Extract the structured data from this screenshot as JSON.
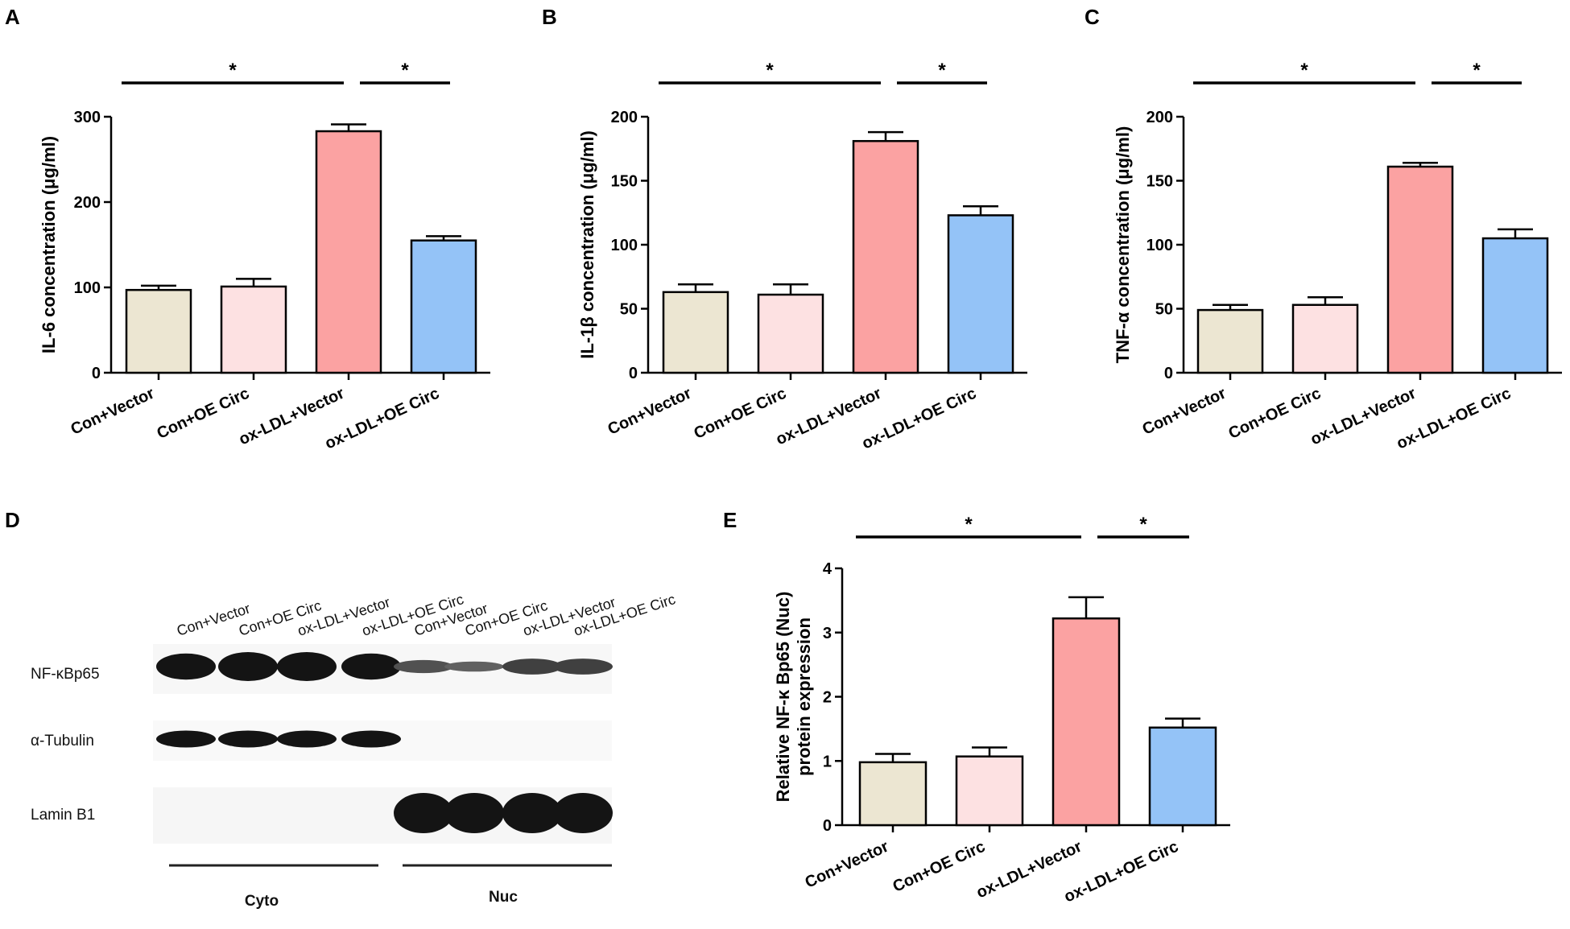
{
  "colors": {
    "bar_fills": [
      "#ece6d2",
      "#fde1e2",
      "#fba2a2",
      "#94c3f7"
    ],
    "axis": "#000000",
    "band": "#1a1a1a"
  },
  "chart_data": [
    {
      "panel": "A",
      "type": "bar",
      "title": "",
      "categories": [
        "Con+Vector",
        "Con+OE Circ",
        "ox-LDL+Vector",
        "ox-LDL+OE Circ"
      ],
      "values": [
        97,
        101,
        283,
        155
      ],
      "errors": [
        5,
        9,
        8,
        5
      ],
      "ylabel": "IL-6 concentration (μg/ml)",
      "ylim": [
        0,
        300
      ],
      "yticks": [
        0,
        100,
        200,
        300
      ],
      "significance": [
        {
          "from": 0,
          "to": 2,
          "label": "*"
        },
        {
          "from": 2,
          "to": 3,
          "label": "*"
        }
      ]
    },
    {
      "panel": "B",
      "type": "bar",
      "title": "",
      "categories": [
        "Con+Vector",
        "Con+OE Circ",
        "ox-LDL+Vector",
        "ox-LDL+OE Circ"
      ],
      "values": [
        63,
        61,
        181,
        123
      ],
      "errors": [
        6,
        8,
        7,
        7
      ],
      "ylabel": "IL-1β  concentration (μg/ml)",
      "ylim": [
        0,
        200
      ],
      "yticks": [
        0,
        50,
        100,
        150,
        200
      ],
      "significance": [
        {
          "from": 0,
          "to": 2,
          "label": "*"
        },
        {
          "from": 2,
          "to": 3,
          "label": "*"
        }
      ]
    },
    {
      "panel": "C",
      "type": "bar",
      "title": "",
      "categories": [
        "Con+Vector",
        "Con+OE Circ",
        "ox-LDL+Vector",
        "ox-LDL+OE Circ"
      ],
      "values": [
        49,
        53,
        161,
        105
      ],
      "errors": [
        4,
        6,
        3,
        7
      ],
      "ylabel": "TNF-α  concentration (μg/ml)",
      "ylim": [
        0,
        200
      ],
      "yticks": [
        0,
        50,
        100,
        150,
        200
      ],
      "significance": [
        {
          "from": 0,
          "to": 2,
          "label": "*"
        },
        {
          "from": 2,
          "to": 3,
          "label": "*"
        }
      ]
    },
    {
      "panel": "E",
      "type": "bar",
      "title": "",
      "categories": [
        "Con+Vector",
        "Con+OE Circ",
        "ox-LDL+Vector",
        "ox-LDL+OE Circ"
      ],
      "values": [
        0.98,
        1.07,
        3.22,
        1.52
      ],
      "errors": [
        0.13,
        0.14,
        0.33,
        0.14
      ],
      "ylabel": [
        "Relative NF-κ Bp65 (Nuc)",
        "protein expression"
      ],
      "ylim": [
        0,
        4
      ],
      "yticks": [
        0,
        1,
        2,
        3,
        4
      ],
      "significance": [
        {
          "from": 0,
          "to": 2,
          "label": "*"
        },
        {
          "from": 2,
          "to": 3,
          "label": "*"
        }
      ]
    }
  ],
  "western_blot": {
    "panel": "D",
    "lanes": [
      "Con+Vector",
      "Con+OE Circ",
      "ox-LDL+Vector",
      "ox-LDL+OE Circ",
      "Con+Vector",
      "Con+OE Circ",
      "ox-LDL+Vector",
      "ox-LDL+OE Circ"
    ],
    "rows": [
      {
        "label": "NF-κBp65",
        "intensity": [
          1.0,
          1.0,
          1.0,
          1.0,
          0.45,
          0.3,
          0.6,
          0.6
        ],
        "thickness": [
          0.9,
          1.0,
          1.0,
          0.9,
          0.45,
          0.35,
          0.55,
          0.55
        ]
      },
      {
        "label": "α-Tubulin",
        "intensity": [
          1.0,
          1.0,
          1.0,
          1.0,
          0,
          0,
          0,
          0
        ],
        "thickness": [
          0.75,
          0.75,
          0.75,
          0.75,
          0,
          0,
          0,
          0
        ]
      },
      {
        "label": "Lamin B1",
        "intensity": [
          0,
          0,
          0,
          0,
          1.0,
          1.0,
          1.0,
          1.0
        ],
        "thickness": [
          0,
          0,
          0,
          0,
          1.0,
          1.0,
          1.0,
          1.0
        ]
      }
    ],
    "groups": [
      "Cyto",
      "Nuc"
    ]
  }
}
